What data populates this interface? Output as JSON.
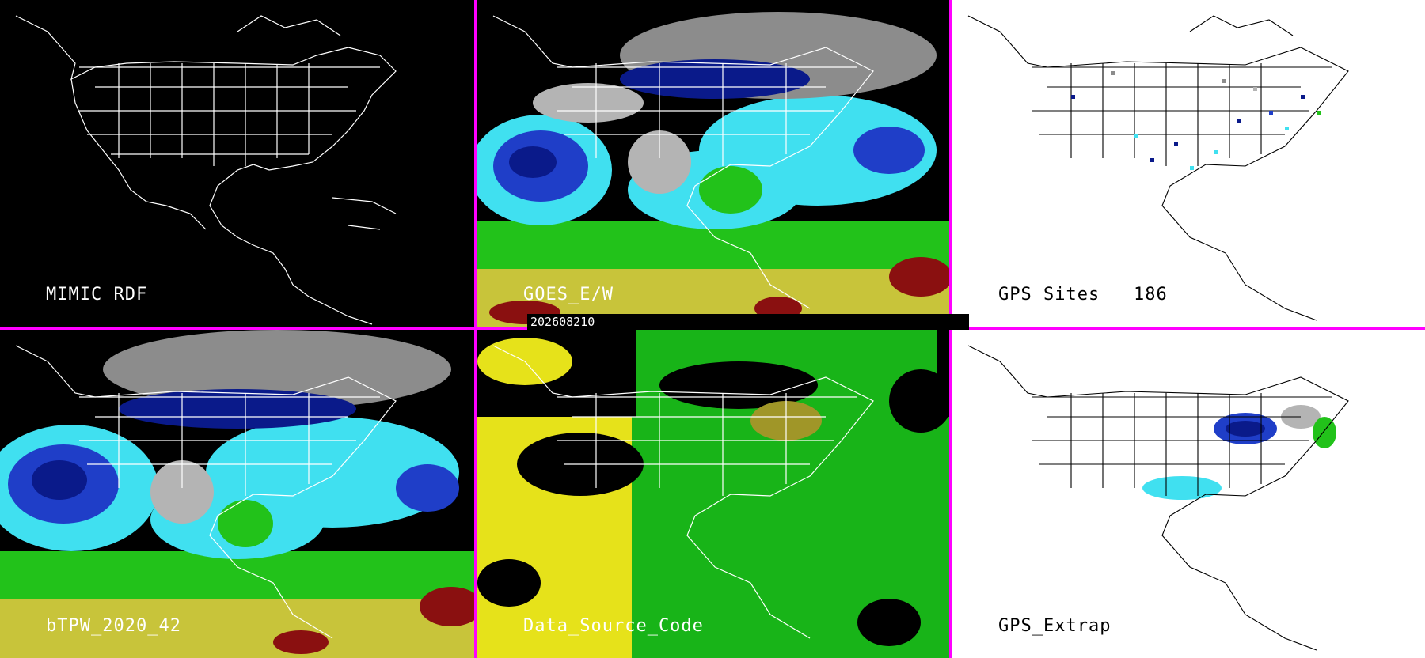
{
  "timestamp": "202608210",
  "panels": [
    {
      "id": "mimic",
      "label": "MIMIC RDF",
      "background": "#000000",
      "text_color": "#ffffff"
    },
    {
      "id": "goes",
      "label": "GOES_E/W",
      "background": "#000000",
      "text_color": "#ffffff"
    },
    {
      "id": "gps_sites",
      "label": "GPS Sites",
      "count": "186",
      "background": "#ffffff",
      "text_color": "#000000"
    },
    {
      "id": "btpw",
      "label": "bTPW_2020_42",
      "background": "#000000",
      "text_color": "#ffffff"
    },
    {
      "id": "data_source",
      "label": "Data_Source_Code",
      "background": "#000000",
      "text_color": "#ffffff"
    },
    {
      "id": "gps_extrap",
      "label": "GPS_Extrap",
      "background": "#ffffff",
      "text_color": "#000000"
    }
  ],
  "colors": {
    "divider": "#ff00ff",
    "tpw_dark_blue": "#0a1a8a",
    "tpw_blue": "#1f3ec8",
    "tpw_cyan": "#40e0f0",
    "tpw_green": "#22c21a",
    "tpw_yellow": "#c8c43a",
    "tpw_red": "#8a1010",
    "gray": "#b4b4b4",
    "source_yellow": "#e6e21a",
    "source_green": "#18b418",
    "source_olive": "#a09628"
  }
}
